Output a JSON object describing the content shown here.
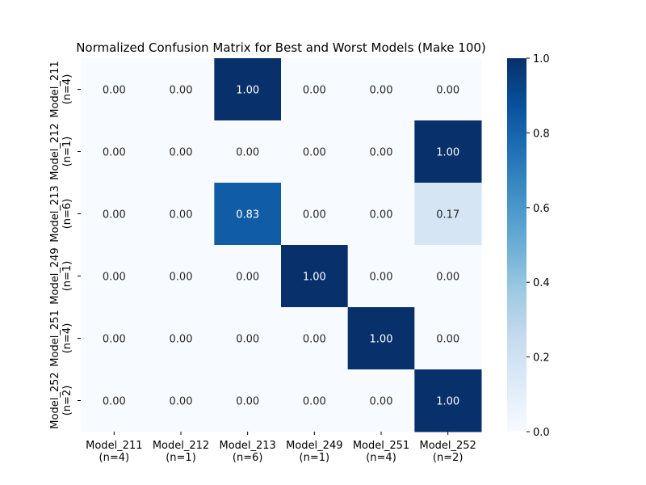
{
  "chart_data": {
    "type": "heatmap",
    "title": "Normalized Confusion Matrix for Best and Worst Models (Make 100)",
    "xlabel": "",
    "ylabel": "",
    "row_labels": [
      [
        "Model_211",
        "(n=4)"
      ],
      [
        "Model_212",
        "(n=1)"
      ],
      [
        "Model_213",
        "(n=6)"
      ],
      [
        "Model_249",
        "(n=1)"
      ],
      [
        "Model_251",
        "(n=4)"
      ],
      [
        "Model_252",
        "(n=2)"
      ]
    ],
    "col_labels": [
      [
        "Model_211",
        "(n=4)"
      ],
      [
        "Model_212",
        "(n=1)"
      ],
      [
        "Model_213",
        "(n=6)"
      ],
      [
        "Model_249",
        "(n=1)"
      ],
      [
        "Model_251",
        "(n=4)"
      ],
      [
        "Model_252",
        "(n=2)"
      ]
    ],
    "values": [
      [
        0.0,
        0.0,
        1.0,
        0.0,
        0.0,
        0.0
      ],
      [
        0.0,
        0.0,
        0.0,
        0.0,
        0.0,
        1.0
      ],
      [
        0.0,
        0.0,
        0.83,
        0.0,
        0.0,
        0.17
      ],
      [
        0.0,
        0.0,
        0.0,
        1.0,
        0.0,
        0.0
      ],
      [
        0.0,
        0.0,
        0.0,
        0.0,
        1.0,
        0.0
      ],
      [
        0.0,
        0.0,
        0.0,
        0.0,
        0.0,
        1.0
      ]
    ],
    "colormap": "Blues",
    "colorbar": {
      "range": [
        0.0,
        1.0
      ],
      "ticks": [
        0.0,
        0.2,
        0.4,
        0.6,
        0.8,
        1.0
      ],
      "tick_labels": [
        "0.0",
        "0.2",
        "0.4",
        "0.6",
        "0.8",
        "1.0"
      ]
    },
    "annotation_format": "2 decimals"
  }
}
